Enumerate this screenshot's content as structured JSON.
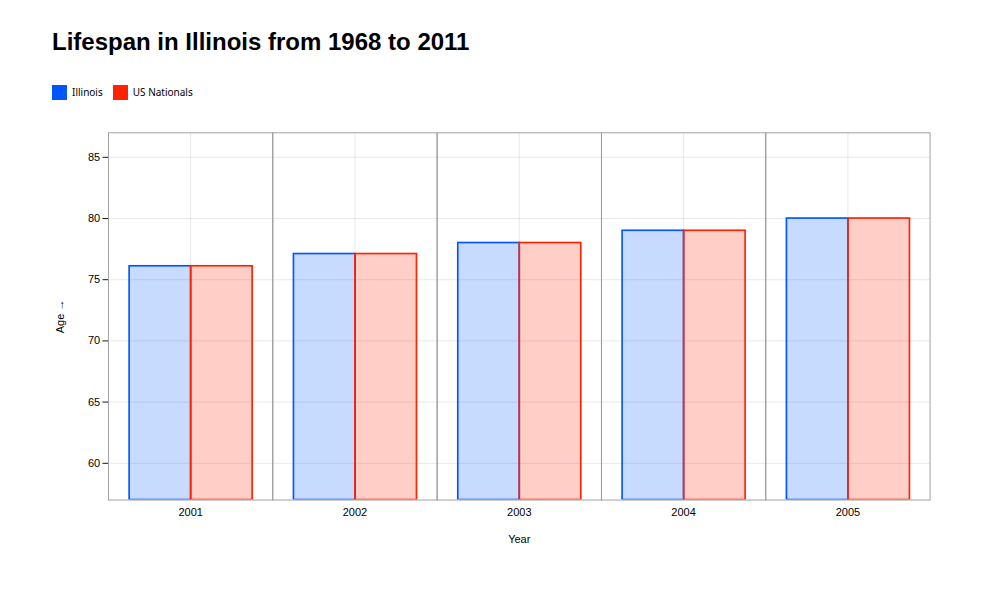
{
  "chart_data": {
    "type": "bar",
    "title": "Lifespan in Illinois from 1968 to 2011",
    "xlabel": "Year",
    "ylabel": "Age",
    "categories": [
      "2001",
      "2002",
      "2003",
      "2004",
      "2005"
    ],
    "series": [
      {
        "name": "Illinois",
        "color": "#0055ff",
        "values": [
          76.1,
          77.1,
          78.0,
          79.0,
          80.0
        ]
      },
      {
        "name": "US Nationals",
        "color": "#ff2200",
        "values": [
          76.1,
          77.1,
          78.0,
          79.0,
          80.0
        ]
      }
    ],
    "ylim": [
      57,
      87
    ],
    "yticks": [
      60,
      65,
      70,
      75,
      80,
      85
    ],
    "grid": true,
    "legend": "top"
  }
}
